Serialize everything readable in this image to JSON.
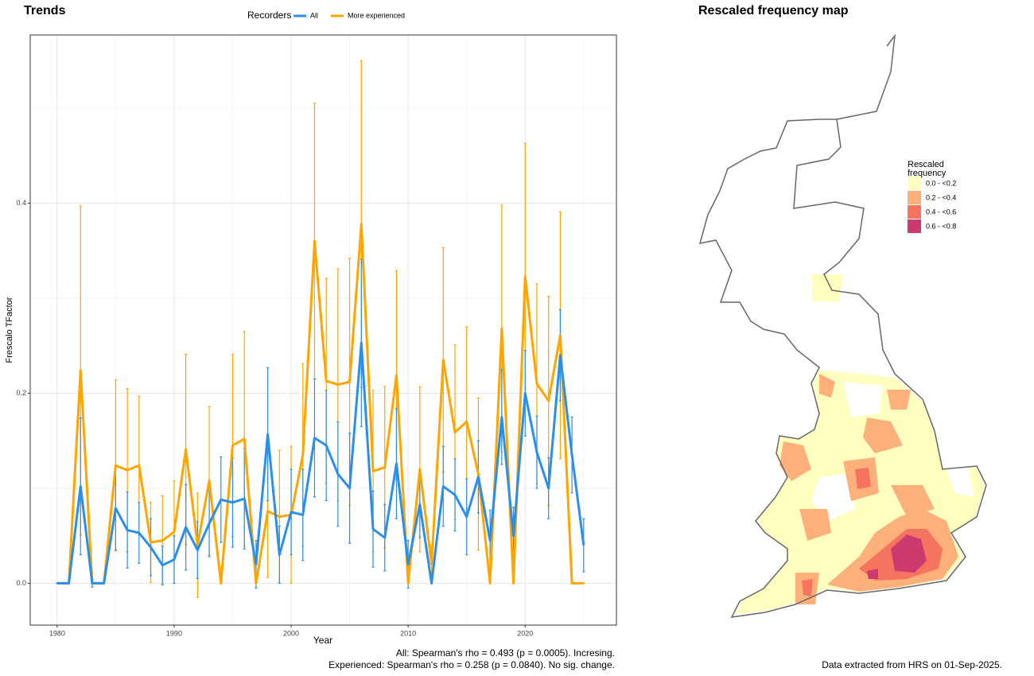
{
  "chart_data": {
    "type": "line",
    "title": "Trends",
    "x_label": "Year",
    "y_label": "Frescalo TFactor",
    "legend_title": "Recorders",
    "legend_position": "top",
    "x": [
      1980,
      1981,
      1982,
      1983,
      1984,
      1985,
      1986,
      1987,
      1988,
      1989,
      1990,
      1991,
      1992,
      1993,
      1994,
      1995,
      1996,
      1997,
      1998,
      1999,
      2000,
      2001,
      2002,
      2003,
      2004,
      2005,
      2006,
      2007,
      2008,
      2009,
      2010,
      2011,
      2012,
      2013,
      2014,
      2015,
      2016,
      2017,
      2018,
      2019,
      2020,
      2021,
      2022,
      2023,
      2024,
      2025
    ],
    "series": [
      {
        "name": "More experienced",
        "color": "#ffa500",
        "values": [
          0,
          0,
          0.224,
          0,
          0,
          0.124,
          0.119,
          0.124,
          0.043,
          0.045,
          0.054,
          0.141,
          0.04,
          0.108,
          0,
          0.145,
          0.152,
          0,
          0.076,
          0.07,
          0.072,
          0.135,
          0.36,
          0.213,
          0.209,
          0.212,
          0.378,
          0.118,
          0.122,
          0.219,
          0,
          0.12,
          0.02,
          0.235,
          0.159,
          0.17,
          0.115,
          0,
          0.268,
          0,
          0.323,
          0.21,
          0.192,
          0.261,
          0,
          0
        ],
        "errors": [
          0,
          0,
          0.173,
          0,
          0,
          0.09,
          0.086,
          0.073,
          0.042,
          0.047,
          0.054,
          0.1,
          0.055,
          0.078,
          0,
          0.096,
          0.113,
          0,
          0.07,
          0.07,
          0.072,
          0.096,
          0.145,
          0.108,
          0.122,
          0.13,
          0.172,
          0.085,
          0.085,
          0.11,
          0,
          0.087,
          0.02,
          0.118,
          0.092,
          0.1,
          0.08,
          0,
          0.13,
          0,
          0.14,
          0.105,
          0.11,
          0.13,
          0,
          0
        ]
      },
      {
        "name": "All",
        "color": "#2b8fe8",
        "values": [
          0,
          0,
          0.102,
          0,
          0,
          0.079,
          0.056,
          0.053,
          0.038,
          0.019,
          0.025,
          0.059,
          0.035,
          0.063,
          0.088,
          0.085,
          0.089,
          0.02,
          0.157,
          0.03,
          0.075,
          0.072,
          0.153,
          0.145,
          0.115,
          0.1,
          0.253,
          0.057,
          0.048,
          0.126,
          0.02,
          0.083,
          0,
          0.102,
          0.093,
          0.07,
          0.112,
          0.045,
          0.175,
          0.05,
          0.2,
          0.138,
          0.1,
          0.24,
          0.135,
          0.04
        ],
        "errors": [
          0,
          0,
          0.072,
          0.004,
          0,
          0.044,
          0.04,
          0.032,
          0.03,
          0.02,
          0.025,
          0.045,
          0.03,
          0.035,
          0.045,
          0.047,
          0.053,
          0.025,
          0.07,
          0.03,
          0.045,
          0.048,
          0.062,
          0.058,
          0.055,
          0.058,
          0.088,
          0.04,
          0.035,
          0.058,
          0.025,
          0.035,
          0,
          0.042,
          0.038,
          0.04,
          0.038,
          0.032,
          0.05,
          0.03,
          0.045,
          0.038,
          0.032,
          0.048,
          0.04,
          0.028
        ]
      }
    ],
    "legend_order": [
      1,
      0
    ],
    "xlim": [
      1977.7,
      2027.8
    ],
    "ylim": [
      -0.044,
      0.577
    ],
    "xticks": [
      1980,
      1990,
      2000,
      2010,
      2020
    ],
    "x_minor_ticks": [
      1985,
      1995,
      2005,
      2015,
      2025
    ],
    "yticks": [
      {
        "value": 0,
        "label": "0.0"
      },
      0.2,
      0.4
    ],
    "y_minor_ticks": [
      0.1,
      0.3,
      0.5
    ],
    "grid": true,
    "annotations": [
      "All: Spearman's rho = 0.493 (p = 0.0005). Incresing.",
      "Experienced: Spearman's rho = 0.258 (p = 0.0840). No sig. change."
    ]
  },
  "map": {
    "title": "Rescaled frequency map",
    "legend_title": [
      "Rescaled",
      "frequency"
    ],
    "legend": [
      {
        "label": "0.0 - <0.2",
        "color": "#ffffc0"
      },
      {
        "label": "0.2 - <0.4",
        "color": "#fdb07a"
      },
      {
        "label": "0.4 - <0.6",
        "color": "#f4745f"
      },
      {
        "label": "0.6 - <0.8",
        "color": "#cd3a6e"
      }
    ],
    "footnote": "Data extracted from HRS on 01-Sep-2025."
  }
}
